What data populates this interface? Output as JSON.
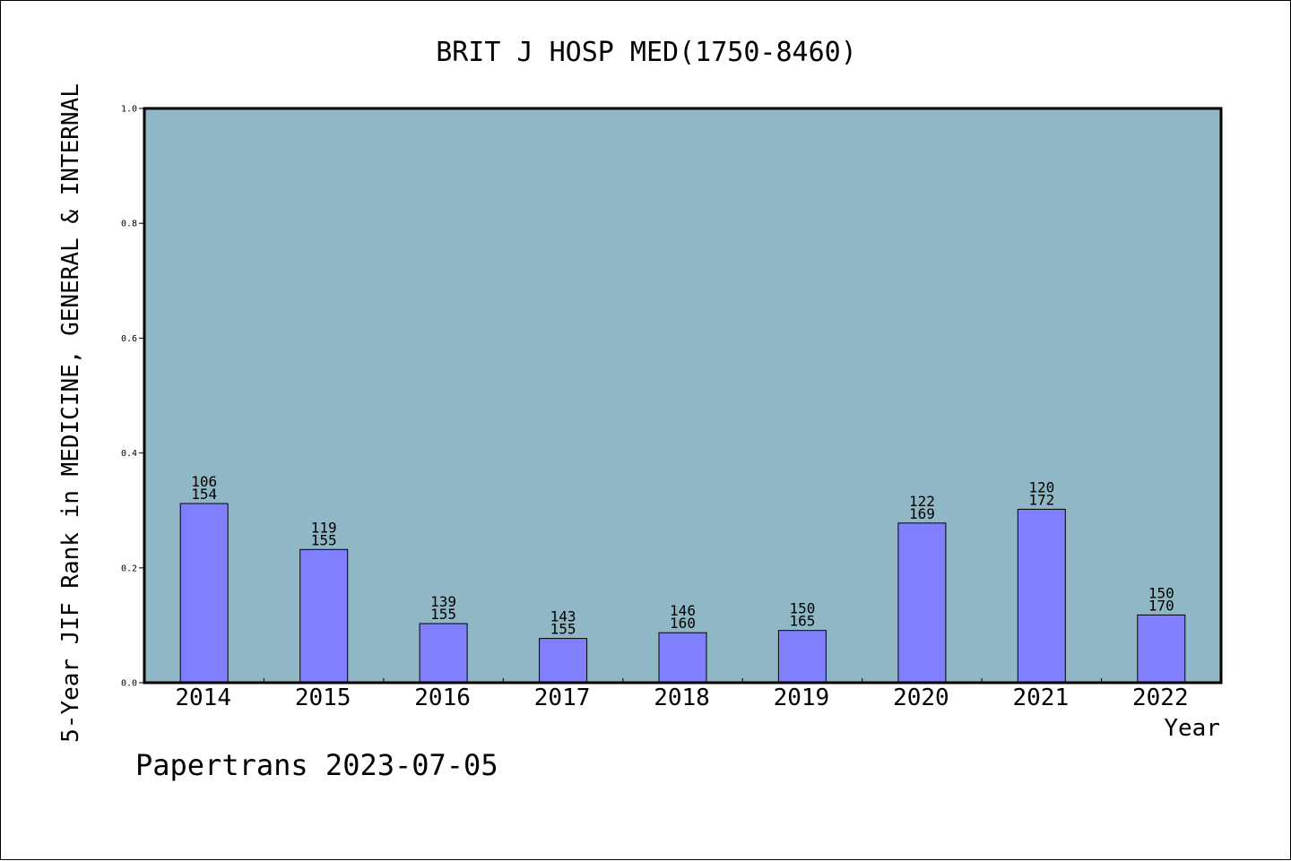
{
  "chart_data": {
    "type": "bar",
    "title": "BRIT J HOSP MED(1750-8460)",
    "xlabel": "Year",
    "ylabel": "5-Year JIF Rank in MEDICINE, GENERAL & INTERNAL",
    "categories": [
      "2014",
      "2015",
      "2016",
      "2017",
      "2018",
      "2019",
      "2020",
      "2021",
      "2022"
    ],
    "values": [
      0.312,
      0.232,
      0.103,
      0.077,
      0.087,
      0.091,
      0.278,
      0.302,
      0.118
    ],
    "bar_labels": [
      {
        "rank": "106",
        "total": "154"
      },
      {
        "rank": "119",
        "total": "155"
      },
      {
        "rank": "139",
        "total": "155"
      },
      {
        "rank": "143",
        "total": "155"
      },
      {
        "rank": "146",
        "total": "160"
      },
      {
        "rank": "150",
        "total": "165"
      },
      {
        "rank": "122",
        "total": "169"
      },
      {
        "rank": "120",
        "total": "172"
      },
      {
        "rank": "150",
        "total": "170"
      }
    ],
    "ylim": [
      0,
      1.0
    ],
    "yticks": [
      "0.0",
      "0.2",
      "0.4",
      "0.6",
      "0.8",
      "1.0"
    ],
    "grid": false,
    "colors": {
      "plot_background": "#8fb7c5",
      "bar_fill": "#8080ff",
      "bar_stroke": "#000000"
    }
  },
  "footer": "Papertrans 2023-07-05"
}
